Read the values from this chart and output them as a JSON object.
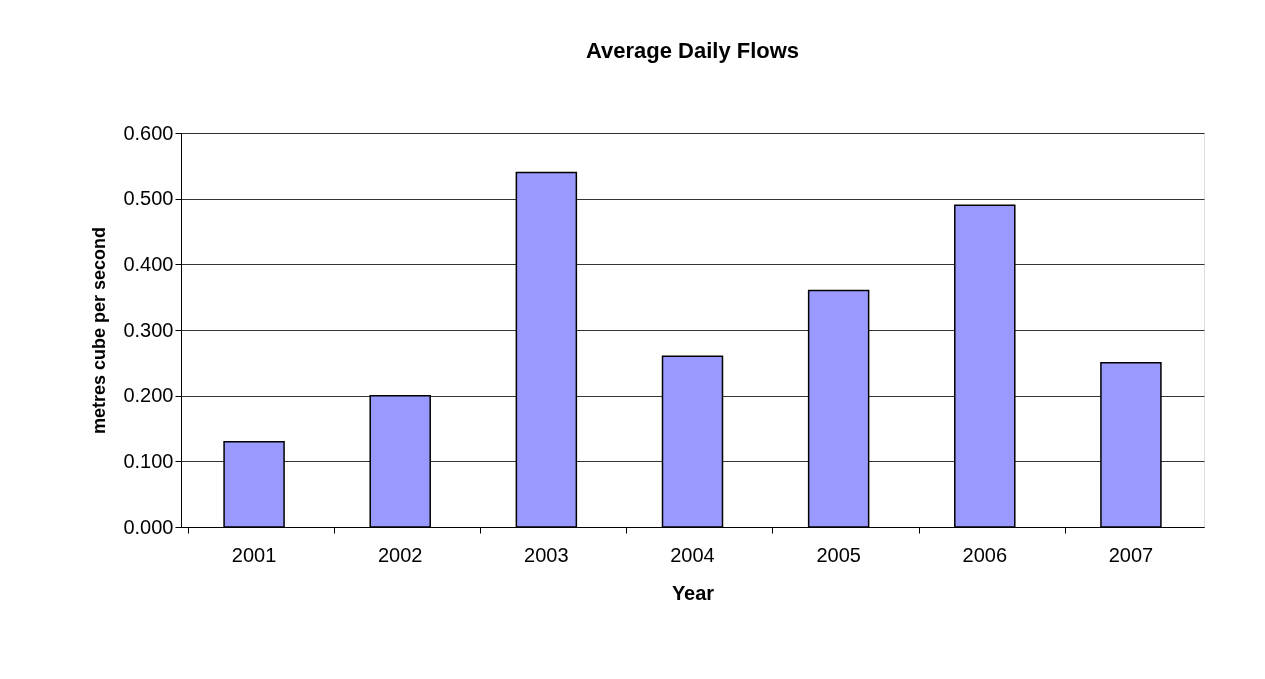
{
  "chart_data": {
    "type": "bar",
    "title": "Average Daily Flows",
    "xlabel": "Year",
    "ylabel": "metres cube per second",
    "categories": [
      "2001",
      "2002",
      "2003",
      "2004",
      "2005",
      "2006",
      "2007"
    ],
    "values": [
      0.13,
      0.2,
      0.54,
      0.26,
      0.36,
      0.49,
      0.25
    ],
    "color": "#9999ff",
    "ylim": [
      0,
      0.6
    ],
    "yticks": [
      {
        "value": 0,
        "label": "0.000"
      },
      {
        "value": 0.1,
        "label": "0.100"
      },
      {
        "value": 0.2,
        "label": "0.200"
      },
      {
        "value": 0.3,
        "label": "0.300"
      },
      {
        "value": 0.4,
        "label": "0.400"
      },
      {
        "value": 0.5,
        "label": "0.500"
      },
      {
        "value": 0.6,
        "label": "0.600"
      }
    ],
    "grid": "y"
  }
}
